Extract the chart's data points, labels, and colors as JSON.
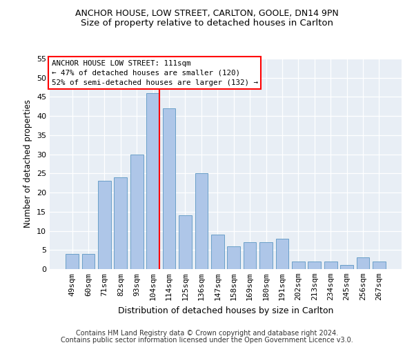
{
  "title1": "ANCHOR HOUSE, LOW STREET, CARLTON, GOOLE, DN14 9PN",
  "title2": "Size of property relative to detached houses in Carlton",
  "xlabel": "Distribution of detached houses by size in Carlton",
  "ylabel": "Number of detached properties",
  "categories": [
    "49sqm",
    "60sqm",
    "71sqm",
    "82sqm",
    "93sqm",
    "104sqm",
    "114sqm",
    "125sqm",
    "136sqm",
    "147sqm",
    "158sqm",
    "169sqm",
    "180sqm",
    "191sqm",
    "202sqm",
    "213sqm",
    "234sqm",
    "245sqm",
    "256sqm",
    "267sqm"
  ],
  "values": [
    4,
    4,
    23,
    24,
    30,
    46,
    42,
    14,
    25,
    9,
    6,
    7,
    7,
    8,
    2,
    2,
    2,
    1,
    3,
    2
  ],
  "bar_color": "#aec6e8",
  "bar_edge_color": "#6a9fc8",
  "vline_color": "red",
  "vline_x_index": 5.4,
  "annotation_text": "ANCHOR HOUSE LOW STREET: 111sqm\n← 47% of detached houses are smaller (120)\n52% of semi-detached houses are larger (132) →",
  "annotation_box_color": "white",
  "annotation_box_edge": "red",
  "ylim": [
    0,
    55
  ],
  "yticks": [
    0,
    5,
    10,
    15,
    20,
    25,
    30,
    35,
    40,
    45,
    50,
    55
  ],
  "footer1": "Contains HM Land Registry data © Crown copyright and database right 2024.",
  "footer2": "Contains public sector information licensed under the Open Government Licence v3.0.",
  "bg_color": "#e8eef5",
  "title1_fontsize": 9,
  "title2_fontsize": 9.5,
  "xlabel_fontsize": 9,
  "ylabel_fontsize": 8.5,
  "tick_fontsize": 8,
  "annot_fontsize": 7.8,
  "footer_fontsize": 7
}
